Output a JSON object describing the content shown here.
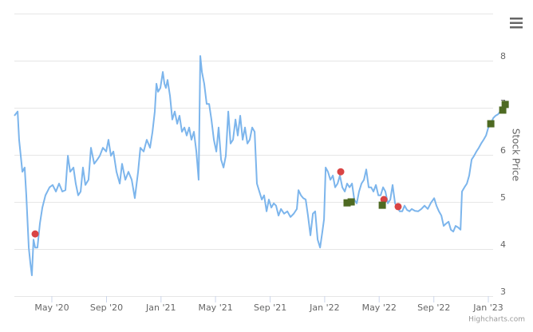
{
  "chart_data": {
    "type": "line",
    "y_label": "Stock Price",
    "credits": "Highcharts.com",
    "grid": true,
    "xlim": [
      2020.104,
      2023.112
    ],
    "ylim": [
      3,
      9
    ],
    "yticks": [
      3,
      4,
      5,
      6,
      7,
      8
    ],
    "xticks": [
      {
        "value": 2020.333,
        "label": "May '20"
      },
      {
        "value": 2020.667,
        "label": "Sep '20"
      },
      {
        "value": 2021.0,
        "label": "Jan '21"
      },
      {
        "value": 2021.333,
        "label": "May '21"
      },
      {
        "value": 2021.667,
        "label": "Sep '21"
      },
      {
        "value": 2022.0,
        "label": "Jan '22"
      },
      {
        "value": 2022.333,
        "label": "May '22"
      },
      {
        "value": 2022.667,
        "label": "Sep '22"
      },
      {
        "value": 2023.0,
        "label": "Jan '23"
      }
    ],
    "series": [
      {
        "color": "#7cb5ec",
        "marker": "none",
        "x": [
          2020.104,
          2020.124,
          2020.133,
          2020.153,
          2020.167,
          2020.177,
          2020.192,
          2020.202,
          2020.211,
          2020.221,
          2020.231,
          2020.245,
          2020.26,
          2020.275,
          2020.294,
          2020.319,
          2020.338,
          2020.358,
          2020.377,
          2020.397,
          2020.416,
          2020.431,
          2020.445,
          2020.465,
          2020.479,
          2020.494,
          2020.509,
          2020.523,
          2020.538,
          2020.557,
          2020.572,
          2020.592,
          2020.611,
          2020.626,
          2020.645,
          2020.665,
          2020.679,
          2020.694,
          2020.709,
          2020.728,
          2020.748,
          2020.762,
          2020.782,
          2020.801,
          2020.821,
          2020.84,
          2020.86,
          2020.874,
          2020.894,
          2020.913,
          2020.933,
          2020.948,
          2020.962,
          2020.972,
          2020.982,
          2020.996,
          2021.011,
          2021.021,
          2021.03,
          2021.04,
          2021.055,
          2021.069,
          2021.084,
          2021.099,
          2021.113,
          2021.128,
          2021.143,
          2021.157,
          2021.172,
          2021.186,
          2021.201,
          2021.216,
          2021.23,
          2021.24,
          2021.25,
          2021.264,
          2021.279,
          2021.294,
          2021.308,
          2021.323,
          2021.338,
          2021.352,
          2021.367,
          2021.382,
          2021.396,
          2021.411,
          2021.425,
          2021.44,
          2021.455,
          2021.469,
          2021.484,
          2021.499,
          2021.513,
          2021.528,
          2021.542,
          2021.557,
          2021.572,
          2021.586,
          2021.601,
          2021.616,
          2021.63,
          2021.645,
          2021.659,
          2021.674,
          2021.689,
          2021.703,
          2021.718,
          2021.733,
          2021.752,
          2021.772,
          2021.791,
          2021.811,
          2021.83,
          2021.84,
          2021.855,
          2021.869,
          2021.884,
          2021.898,
          2021.913,
          2021.928,
          2021.942,
          2021.957,
          2021.972,
          2021.986,
          2021.996,
          2022.006,
          2022.02,
          2022.035,
          2022.05,
          2022.064,
          2022.079,
          2022.093,
          2022.108,
          2022.123,
          2022.137,
          2022.152,
          2022.167,
          2022.181,
          2022.196,
          2022.21,
          2022.225,
          2022.24,
          2022.254,
          2022.269,
          2022.284,
          2022.298,
          2022.313,
          2022.328,
          2022.342,
          2022.357,
          2022.371,
          2022.386,
          2022.401,
          2022.415,
          2022.43,
          2022.444,
          2022.459,
          2022.474,
          2022.488,
          2022.503,
          2022.518,
          2022.532,
          2022.552,
          2022.571,
          2022.591,
          2022.61,
          2022.63,
          2022.649,
          2022.669,
          2022.683,
          2022.698,
          2022.713,
          2022.727,
          2022.742,
          2022.757,
          2022.771,
          2022.786,
          2022.8,
          2022.815,
          2022.83,
          2022.839,
          2022.854,
          2022.869,
          2022.883,
          2022.898,
          2022.913,
          2022.927,
          2022.942,
          2022.956,
          2022.971,
          2022.986,
          2023.0,
          2023.015,
          2023.03,
          2023.044,
          2023.059,
          2023.073,
          2023.088
        ],
        "values": [
          6.83,
          6.92,
          6.32,
          5.64,
          5.73,
          5.14,
          4.03,
          3.69,
          3.44,
          4.2,
          4.03,
          4.03,
          4.54,
          4.88,
          5.14,
          5.31,
          5.36,
          5.22,
          5.39,
          5.22,
          5.25,
          5.98,
          5.64,
          5.73,
          5.39,
          5.14,
          5.22,
          5.73,
          5.36,
          5.47,
          6.15,
          5.81,
          5.9,
          5.98,
          6.15,
          6.07,
          6.32,
          5.98,
          6.07,
          5.64,
          5.39,
          5.81,
          5.47,
          5.64,
          5.47,
          5.08,
          5.64,
          6.15,
          6.07,
          6.32,
          6.15,
          6.49,
          6.92,
          7.51,
          7.34,
          7.42,
          7.76,
          7.51,
          7.42,
          7.59,
          7.25,
          6.75,
          6.92,
          6.66,
          6.83,
          6.49,
          6.58,
          6.41,
          6.58,
          6.32,
          6.49,
          6.07,
          5.47,
          8.1,
          7.76,
          7.51,
          7.08,
          7.08,
          6.75,
          6.32,
          6.07,
          6.58,
          5.9,
          5.73,
          5.98,
          6.92,
          6.24,
          6.32,
          6.75,
          6.41,
          6.83,
          6.32,
          6.58,
          6.24,
          6.32,
          6.58,
          6.49,
          5.39,
          5.22,
          5.05,
          5.14,
          4.8,
          5.05,
          4.88,
          4.97,
          4.92,
          4.71,
          4.85,
          4.75,
          4.8,
          4.68,
          4.75,
          4.85,
          5.25,
          5.14,
          5.08,
          5.05,
          4.71,
          4.29,
          4.75,
          4.8,
          4.2,
          4.03,
          4.37,
          4.63,
          5.73,
          5.64,
          5.47,
          5.56,
          5.31,
          5.39,
          5.56,
          5.31,
          5.22,
          5.39,
          5.31,
          5.39,
          5.05,
          4.97,
          5.22,
          5.39,
          5.47,
          5.69,
          5.31,
          5.31,
          5.22,
          5.36,
          5.14,
          5.14,
          5.31,
          5.22,
          4.97,
          5.05,
          5.36,
          4.97,
          4.88,
          4.8,
          4.8,
          4.92,
          4.83,
          4.8,
          4.85,
          4.81,
          4.8,
          4.85,
          4.92,
          4.85,
          4.98,
          5.08,
          4.92,
          4.8,
          4.71,
          4.49,
          4.54,
          4.58,
          4.41,
          4.37,
          4.49,
          4.46,
          4.41,
          5.22,
          5.31,
          5.39,
          5.56,
          5.9,
          5.98,
          6.07,
          6.15,
          6.24,
          6.32,
          6.41,
          6.58,
          6.66,
          6.78,
          6.83,
          6.86,
          6.92,
          6.95
        ]
      },
      {
        "color": "#d94444",
        "marker": "circle",
        "x": [
          2020.231,
          2022.098,
          2022.362,
          2022.449
        ],
        "values": [
          4.32,
          5.64,
          5.05,
          4.9
        ]
      },
      {
        "color": "#4e6a22",
        "marker": "square",
        "x": [
          2022.137,
          2022.162,
          2022.352,
          2023.015,
          2023.088,
          2023.103
        ],
        "values": [
          4.98,
          5.0,
          4.93,
          6.66,
          6.95,
          7.07
        ]
      }
    ]
  }
}
